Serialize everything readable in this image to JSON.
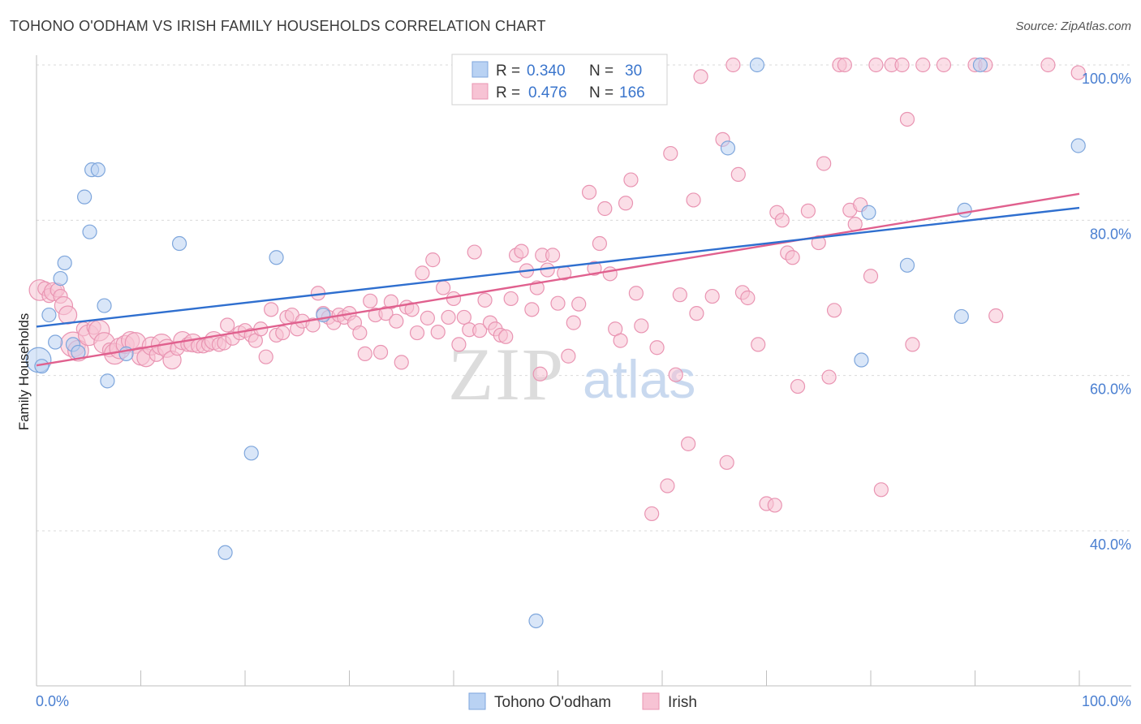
{
  "header": {
    "title": "TOHONO O'ODHAM VS IRISH FAMILY HOUSEHOLDS CORRELATION CHART",
    "source": "Source: ZipAtlas.com"
  },
  "watermark": {
    "zip": "ZIP",
    "atlas": "atlas"
  },
  "chart_data": {
    "type": "scatter",
    "title": "TOHONO O'ODHAM VS IRISH FAMILY HOUSEHOLDS CORRELATION CHART",
    "xlabel": "",
    "ylabel": "Family Households",
    "xlim": [
      0,
      100
    ],
    "ylim": [
      20,
      102
    ],
    "x_tick_labels": {
      "left": "0.0%",
      "right": "100.0%"
    },
    "y_ticks": [
      {
        "value": 40,
        "label": "40.0%"
      },
      {
        "value": 60,
        "label": "60.0%"
      },
      {
        "value": 80,
        "label": "80.0%"
      },
      {
        "value": 100,
        "label": "100.0%"
      }
    ],
    "colors": {
      "tohono_fill": "#b9d2f3",
      "tohono_stroke": "#7ea6dc",
      "tohono_line": "#2f6fcf",
      "irish_fill": "#f7c3d4",
      "irish_stroke": "#e994b2",
      "irish_line": "#e0608e",
      "grid": "#d9d9d9",
      "tick_text": "#4a7fd1"
    },
    "legend": {
      "rows": [
        {
          "r_label": "R = ",
          "r_value": "0.340",
          "n_label": "N = ",
          "n_value": "30"
        },
        {
          "r_label": "R = ",
          "r_value": "0.476",
          "n_label": "N = ",
          "n_value": "166"
        }
      ]
    },
    "series": [
      {
        "name": "Tohono O'odham",
        "trend": {
          "x0": 0,
          "y0": 66.3,
          "x1": 100,
          "y1": 81.6
        },
        "points": [
          [
            0.2,
            62.0,
            1.8
          ],
          [
            0.5,
            61.2,
            1
          ],
          [
            1.2,
            67.8,
            1
          ],
          [
            1.8,
            64.3,
            1
          ],
          [
            2.3,
            72.5,
            1
          ],
          [
            2.7,
            74.5,
            1
          ],
          [
            3.5,
            64.0,
            1
          ],
          [
            4.0,
            63.0,
            1
          ],
          [
            4.6,
            83.0,
            1
          ],
          [
            5.1,
            78.5,
            1
          ],
          [
            5.3,
            86.5,
            1
          ],
          [
            5.9,
            86.5,
            1
          ],
          [
            6.5,
            69.0,
            1
          ],
          [
            6.8,
            59.3,
            1
          ],
          [
            8.6,
            62.8,
            1
          ],
          [
            13.7,
            77.0,
            1
          ],
          [
            18.1,
            37.2,
            1
          ],
          [
            20.6,
            50.0,
            1
          ],
          [
            23.0,
            75.2,
            1
          ],
          [
            27.5,
            67.8,
            1
          ],
          [
            47.9,
            28.4,
            1
          ],
          [
            66.3,
            89.3,
            1
          ],
          [
            69.1,
            100.0,
            1
          ],
          [
            79.1,
            62.0,
            1
          ],
          [
            79.8,
            81.0,
            1
          ],
          [
            83.5,
            74.2,
            1
          ],
          [
            88.7,
            67.6,
            1
          ],
          [
            89.0,
            81.3,
            1
          ],
          [
            90.5,
            100.0,
            1
          ],
          [
            99.9,
            89.6,
            1
          ]
        ]
      },
      {
        "name": "Irish",
        "trend": {
          "x0": 0,
          "y0": 61.3,
          "x1": 100,
          "y1": 83.4
        },
        "points": [
          [
            0.3,
            71.0,
            1.5
          ],
          [
            0.8,
            71.2,
            1
          ],
          [
            1.2,
            70.3,
            1
          ],
          [
            1.6,
            70.8,
            1.3
          ],
          [
            2.0,
            71.0,
            1
          ],
          [
            2.3,
            70.2,
            1
          ],
          [
            2.6,
            69.0,
            1.3
          ],
          [
            3.0,
            67.8,
            1.3
          ],
          [
            3.5,
            64.0,
            1.8
          ],
          [
            4.0,
            63.2,
            1.5
          ],
          [
            4.5,
            66.0,
            1
          ],
          [
            5.0,
            65.2,
            1.5
          ],
          [
            5.5,
            66.2,
            1
          ],
          [
            6.0,
            65.8,
            1.5
          ],
          [
            6.5,
            64.2,
            1.5
          ],
          [
            7.0,
            63.3,
            1
          ],
          [
            7.5,
            62.8,
            1.5
          ],
          [
            8.0,
            63.5,
            1.5
          ],
          [
            8.5,
            64.0,
            1.3
          ],
          [
            9.0,
            64.5,
            1.3
          ],
          [
            9.5,
            64.2,
            1.5
          ],
          [
            10.0,
            62.5,
            1.3
          ],
          [
            10.5,
            62.3,
            1.3
          ],
          [
            11.0,
            63.8,
            1.3
          ],
          [
            11.5,
            62.7,
            1
          ],
          [
            12.0,
            64.0,
            1.5
          ],
          [
            12.5,
            63.5,
            1.3
          ],
          [
            13.0,
            62.0,
            1.3
          ],
          [
            13.5,
            63.5,
            1
          ],
          [
            14.0,
            64.5,
            1.3
          ],
          [
            14.5,
            64.0,
            1
          ],
          [
            15.0,
            64.2,
            1.3
          ],
          [
            15.5,
            63.8,
            1
          ],
          [
            16.0,
            63.8,
            1
          ],
          [
            16.5,
            64.0,
            1
          ],
          [
            17.0,
            64.5,
            1.3
          ],
          [
            17.5,
            64.0,
            1
          ],
          [
            18.0,
            64.2,
            1
          ],
          [
            18.3,
            66.5,
            1
          ],
          [
            18.8,
            64.8,
            1
          ],
          [
            19.5,
            65.5,
            1
          ],
          [
            20.0,
            65.8,
            1
          ],
          [
            20.6,
            65.2,
            1
          ],
          [
            21.0,
            64.5,
            1
          ],
          [
            21.5,
            66.0,
            1
          ],
          [
            22.0,
            62.4,
            1
          ],
          [
            22.5,
            68.5,
            1
          ],
          [
            23.0,
            65.2,
            1
          ],
          [
            23.6,
            65.5,
            1
          ],
          [
            24.0,
            67.5,
            1
          ],
          [
            24.5,
            67.8,
            1
          ],
          [
            25.0,
            66.0,
            1
          ],
          [
            25.5,
            67.0,
            1
          ],
          [
            26.5,
            66.5,
            1
          ],
          [
            27.0,
            70.6,
            1
          ],
          [
            27.5,
            68.0,
            1
          ],
          [
            28.0,
            67.5,
            1
          ],
          [
            28.5,
            66.8,
            1
          ],
          [
            29.0,
            67.8,
            1
          ],
          [
            29.5,
            67.5,
            1
          ],
          [
            30.0,
            68.0,
            1
          ],
          [
            30.5,
            66.8,
            1
          ],
          [
            31.0,
            65.5,
            1
          ],
          [
            31.5,
            62.8,
            1
          ],
          [
            32.0,
            69.6,
            1
          ],
          [
            32.5,
            67.8,
            1
          ],
          [
            33.0,
            63.0,
            1
          ],
          [
            33.5,
            68.0,
            1
          ],
          [
            34.0,
            69.5,
            1
          ],
          [
            34.5,
            67.0,
            1
          ],
          [
            35.0,
            61.7,
            1
          ],
          [
            35.5,
            68.8,
            1
          ],
          [
            36.0,
            68.5,
            1
          ],
          [
            36.5,
            65.5,
            1
          ],
          [
            37.0,
            73.2,
            1
          ],
          [
            37.5,
            67.4,
            1
          ],
          [
            38.0,
            74.9,
            1
          ],
          [
            38.5,
            65.6,
            1
          ],
          [
            39.0,
            71.3,
            1
          ],
          [
            39.5,
            67.5,
            1
          ],
          [
            40.0,
            69.9,
            1
          ],
          [
            40.5,
            64.0,
            1
          ],
          [
            41.0,
            67.5,
            1
          ],
          [
            41.5,
            65.9,
            1
          ],
          [
            42.0,
            75.9,
            1
          ],
          [
            42.5,
            65.8,
            1
          ],
          [
            43.0,
            69.7,
            1
          ],
          [
            43.5,
            66.8,
            1
          ],
          [
            44.0,
            66.0,
            1
          ],
          [
            44.5,
            65.2,
            1
          ],
          [
            45.0,
            65.0,
            1
          ],
          [
            45.5,
            69.9,
            1
          ],
          [
            46.0,
            75.5,
            1
          ],
          [
            46.5,
            76.0,
            1
          ],
          [
            47.0,
            73.5,
            1
          ],
          [
            47.5,
            68.5,
            1
          ],
          [
            48.0,
            71.3,
            1
          ],
          [
            48.3,
            60.2,
            1
          ],
          [
            48.5,
            75.5,
            1
          ],
          [
            49.0,
            73.6,
            1
          ],
          [
            49.5,
            75.5,
            1
          ],
          [
            50.0,
            69.3,
            1
          ],
          [
            50.6,
            73.2,
            1
          ],
          [
            51.0,
            62.5,
            1
          ],
          [
            51.5,
            66.8,
            1
          ],
          [
            52.0,
            69.2,
            1
          ],
          [
            53.0,
            83.6,
            1
          ],
          [
            53.5,
            73.8,
            1
          ],
          [
            54.0,
            77.0,
            1
          ],
          [
            54.5,
            81.5,
            1
          ],
          [
            55.0,
            73.1,
            1
          ],
          [
            55.5,
            66.0,
            1
          ],
          [
            56.0,
            64.5,
            1
          ],
          [
            56.5,
            82.2,
            1
          ],
          [
            57.0,
            85.2,
            1
          ],
          [
            57.5,
            70.6,
            1
          ],
          [
            58.0,
            66.4,
            1
          ],
          [
            59.0,
            42.2,
            1
          ],
          [
            59.5,
            63.6,
            1
          ],
          [
            60.5,
            45.8,
            1
          ],
          [
            60.8,
            88.6,
            1
          ],
          [
            61.3,
            60.1,
            1
          ],
          [
            61.7,
            70.4,
            1
          ],
          [
            62.5,
            51.2,
            1
          ],
          [
            63.0,
            82.6,
            1
          ],
          [
            63.3,
            68.0,
            1
          ],
          [
            63.7,
            98.5,
            1
          ],
          [
            64.8,
            70.2,
            1
          ],
          [
            65.8,
            90.4,
            1
          ],
          [
            66.2,
            48.8,
            1
          ],
          [
            66.8,
            100.0,
            1
          ],
          [
            67.3,
            85.9,
            1
          ],
          [
            67.7,
            70.7,
            1
          ],
          [
            68.2,
            70.0,
            1
          ],
          [
            69.2,
            64.0,
            1
          ],
          [
            70.0,
            43.5,
            1
          ],
          [
            70.8,
            43.3,
            1
          ],
          [
            71.0,
            81.0,
            1
          ],
          [
            71.5,
            80.0,
            1
          ],
          [
            72.0,
            75.8,
            1
          ],
          [
            72.5,
            75.2,
            1
          ],
          [
            73.0,
            58.6,
            1
          ],
          [
            74.0,
            81.2,
            1
          ],
          [
            75.0,
            77.1,
            1
          ],
          [
            75.5,
            87.3,
            1
          ],
          [
            76.0,
            59.8,
            1
          ],
          [
            76.5,
            68.4,
            1
          ],
          [
            77.0,
            100.0,
            1
          ],
          [
            77.5,
            100.0,
            1
          ],
          [
            78.0,
            81.3,
            1
          ],
          [
            78.5,
            79.5,
            1
          ],
          [
            79.0,
            82.0,
            1
          ],
          [
            80.0,
            72.8,
            1
          ],
          [
            80.5,
            100.0,
            1
          ],
          [
            81.0,
            45.3,
            1
          ],
          [
            82.0,
            100.0,
            1
          ],
          [
            83.0,
            100.0,
            1
          ],
          [
            83.5,
            93.0,
            1
          ],
          [
            84.0,
            64.0,
            1
          ],
          [
            85.0,
            100.0,
            1
          ],
          [
            87.0,
            100.0,
            1
          ],
          [
            90.0,
            100.0,
            1
          ],
          [
            91.0,
            100.0,
            1
          ],
          [
            92.0,
            67.7,
            1
          ],
          [
            97.0,
            100.0,
            1
          ],
          [
            99.9,
            99.0,
            1
          ]
        ]
      }
    ]
  },
  "bottom_legend": {
    "tohono_label": "Tohono O'odham",
    "irish_label": "Irish"
  }
}
